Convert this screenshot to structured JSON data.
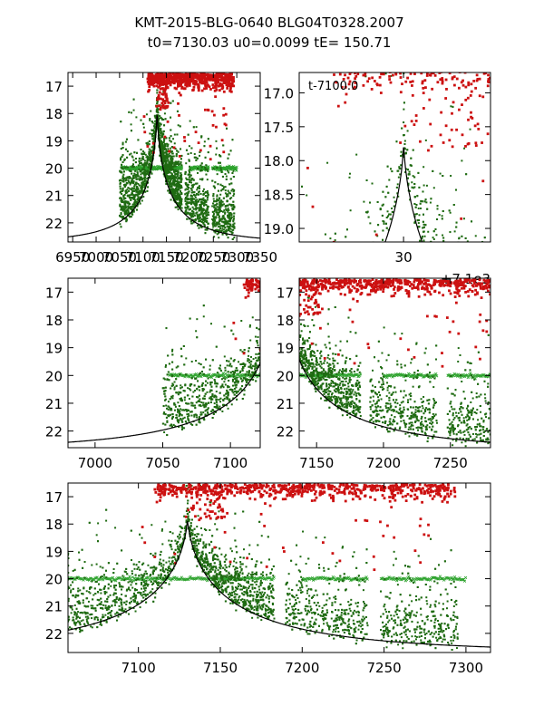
{
  "figure": {
    "title_line1": "KMT-2015-BLG-0640 BLG04T0328.2007",
    "title_line2": "t0=7130.03 u0=0.0099 tE= 150.71"
  },
  "colors": {
    "model_line": "#000000",
    "data_green": "#1f6b12",
    "model_x_green": "#2ea32e",
    "flag_red": "#cc1111"
  },
  "model": {
    "t0": 7130.03,
    "u0": 0.0099,
    "tE": 150.71,
    "peak_mag": 17.7,
    "base_mag": 22.7
  },
  "chart_data": [
    {
      "id": "p1",
      "type": "scatter",
      "xlim": [
        6940,
        7350
      ],
      "ylim": [
        22.7,
        16.5
      ],
      "x_ticks": [
        6950,
        7000,
        7050,
        7100,
        7150,
        7200,
        7250,
        7300,
        7350
      ],
      "x_tick_labels": [
        "6950",
        "7000",
        "7050",
        "7100",
        "7150",
        "7200",
        "7250",
        "7300",
        "7350"
      ],
      "y_ticks": [
        17,
        18,
        19,
        20,
        21,
        22
      ],
      "y_tick_labels": [
        "17",
        "18",
        "19",
        "20",
        "21",
        "22"
      ],
      "grid": false,
      "series": [
        {
          "values": "simulated KMTNet light curve points around model"
        }
      ]
    },
    {
      "id": "p2",
      "type": "scatter",
      "xlim": [
        7100,
        7155
      ],
      "ylim": [
        19.2,
        16.7
      ],
      "x_ticks": [
        7130
      ],
      "x_tick_labels": [
        "30"
      ],
      "x_offset_text": "+7.1e3",
      "annotation": "t-7100.0",
      "y_ticks": [
        17.0,
        17.5,
        18.0,
        18.5,
        19.0
      ],
      "y_tick_labels": [
        "17.0",
        "17.5",
        "18.0",
        "18.5",
        "19.0"
      ],
      "grid": false,
      "series": [
        {
          "values": "few points near peak"
        }
      ]
    },
    {
      "id": "p3",
      "type": "scatter",
      "xlim": [
        6980,
        7122
      ],
      "ylim": [
        22.6,
        16.5
      ],
      "x_ticks": [
        7000,
        7050,
        7100
      ],
      "x_tick_labels": [
        "7000",
        "7050",
        "7100"
      ],
      "y_ticks": [
        17,
        18,
        19,
        20,
        21,
        22
      ],
      "y_tick_labels": [
        "17",
        "18",
        "19",
        "20",
        "21",
        "22"
      ],
      "grid": false
    },
    {
      "id": "p4",
      "type": "scatter",
      "xlim": [
        7137,
        7280
      ],
      "ylim": [
        22.6,
        16.5
      ],
      "x_ticks": [
        7150,
        7200,
        7250
      ],
      "x_tick_labels": [
        "7150",
        "7200",
        "7250"
      ],
      "y_ticks": [
        17,
        18,
        19,
        20,
        21,
        22
      ],
      "y_tick_labels": [
        "17",
        "18",
        "19",
        "20",
        "21",
        "22"
      ],
      "grid": false
    },
    {
      "id": "p5",
      "type": "scatter",
      "xlim": [
        7057,
        7315
      ],
      "ylim": [
        22.7,
        16.5
      ],
      "x_ticks": [
        7100,
        7150,
        7200,
        7250,
        7300
      ],
      "x_tick_labels": [
        "7100",
        "7150",
        "7200",
        "7250",
        "7300"
      ],
      "y_ticks": [
        17,
        18,
        19,
        20,
        21,
        22
      ],
      "y_tick_labels": [
        "17",
        "18",
        "19",
        "20",
        "21",
        "22"
      ],
      "grid": false
    }
  ]
}
